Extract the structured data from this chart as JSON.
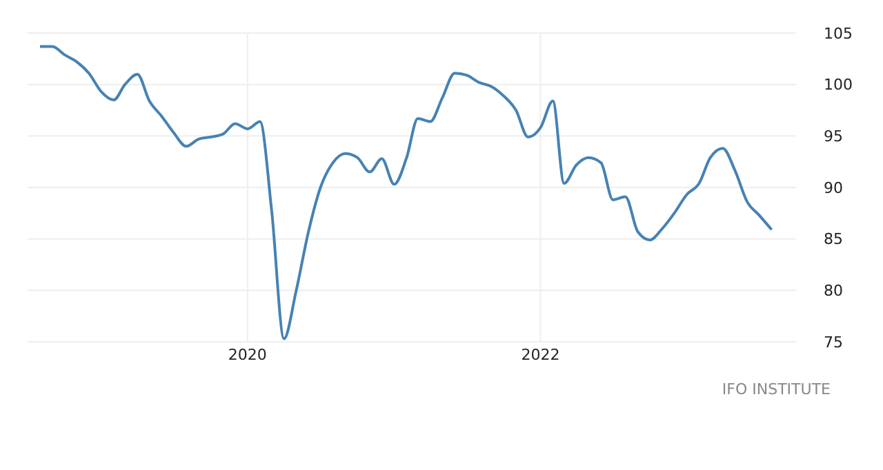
{
  "chart_data": {
    "type": "line",
    "x": [
      "2018-08",
      "2018-09",
      "2018-10",
      "2018-11",
      "2018-12",
      "2019-01",
      "2019-02",
      "2019-03",
      "2019-04",
      "2019-05",
      "2019-06",
      "2019-07",
      "2019-08",
      "2019-09",
      "2019-10",
      "2019-11",
      "2019-12",
      "2020-01",
      "2020-02",
      "2020-03",
      "2020-04",
      "2020-05",
      "2020-06",
      "2020-07",
      "2020-08",
      "2020-09",
      "2020-10",
      "2020-11",
      "2020-12",
      "2021-01",
      "2021-02",
      "2021-03",
      "2021-04",
      "2021-05",
      "2021-06",
      "2021-07",
      "2021-08",
      "2021-09",
      "2021-10",
      "2021-11",
      "2021-12",
      "2022-01",
      "2022-02",
      "2022-03",
      "2022-04",
      "2022-05",
      "2022-06",
      "2022-07",
      "2022-08",
      "2022-09",
      "2022-10",
      "2022-11",
      "2022-12",
      "2023-01",
      "2023-02",
      "2023-03",
      "2023-04",
      "2023-05",
      "2023-06",
      "2023-07",
      "2023-08"
    ],
    "series": [
      {
        "color": "#4682b4",
        "values": [
          103.7,
          103.7,
          102.9,
          102.2,
          101.1,
          99.3,
          98.5,
          100,
          101,
          98.4,
          96.9,
          95.3,
          94,
          94.7,
          94.9,
          95.2,
          96.2,
          95.7,
          96.4,
          87.8,
          75.3,
          79.9,
          85.7,
          90,
          92.4,
          93.3,
          92.9,
          91.5,
          92.8,
          90.3,
          92.9,
          96.7,
          96.4,
          98.7,
          101.1,
          100.9,
          100.2,
          99.8,
          98.9,
          97.5,
          94.9,
          95.8,
          98.4,
          90.4,
          92.2,
          92.9,
          92.4,
          88.8,
          89.1,
          85.7,
          84.9,
          86,
          87.5,
          89.3,
          90.4,
          92.9,
          93.8,
          91.7,
          88.6,
          87.3,
          85.9
        ]
      }
    ],
    "xlim": [
      "2018-07",
      "2023-10"
    ],
    "xticks": [
      {
        "value": "2020-01",
        "label": "2020"
      },
      {
        "value": "2022-01",
        "label": "2022"
      }
    ],
    "ylim": [
      75,
      105
    ],
    "yticks": [
      75,
      80,
      85,
      90,
      95,
      100,
      105
    ],
    "grid": true,
    "marker": "none",
    "line_style": "solid",
    "annotations": [
      "IFO INSTITUTE"
    ]
  }
}
